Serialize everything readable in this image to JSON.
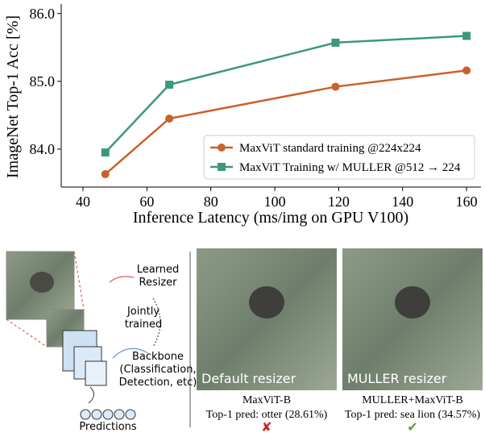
{
  "chart_data": {
    "type": "line",
    "xlabel": "Inference Latency (ms/img on GPU V100)",
    "ylabel": "ImageNet Top-1 Acc [%]",
    "x": [
      47,
      67,
      119,
      160
    ],
    "series": [
      {
        "name": "MaxViT standard training @224x224",
        "color": "#c8622a",
        "marker": "circle",
        "values": [
          83.63,
          84.45,
          84.92,
          85.16
        ]
      },
      {
        "name": "MaxViT Training w/ MULLER @512 → 224",
        "color": "#3a9a78",
        "marker": "square",
        "values": [
          83.95,
          84.95,
          85.57,
          85.67
        ]
      }
    ],
    "xlim": [
      33.2,
      164.5
    ],
    "xticks": [
      40,
      60,
      80,
      100,
      120,
      140,
      160
    ],
    "ylim": [
      83.44,
      86.14
    ],
    "yticks": [
      {
        "value": 84,
        "label": "84.0"
      },
      {
        "value": 85,
        "label": "85.0"
      },
      {
        "value": 86,
        "label": "86.0"
      }
    ],
    "grid": false,
    "legend": "lower right"
  },
  "diagram": {
    "learned_resizer": [
      "Learned",
      "Resizer"
    ],
    "jointly_trained": [
      "Jointly",
      "trained"
    ],
    "backbone": [
      "Backbone",
      "(Classification,",
      "Detection, etc)"
    ],
    "predictions": "Predictions",
    "panels": [
      {
        "caption": "Default resizer",
        "model": "MaxViT-B",
        "prediction": "Top-1 pred: otter (28.61%)",
        "verdict": "✘",
        "verdict_color": "#d62020"
      },
      {
        "caption": "MULLER resizer",
        "model": "MULLER+MaxViT-B",
        "prediction": "Top-1 pred: sea lion (34.57%)",
        "verdict": "✔",
        "verdict_color": "#5aa02c"
      }
    ]
  }
}
